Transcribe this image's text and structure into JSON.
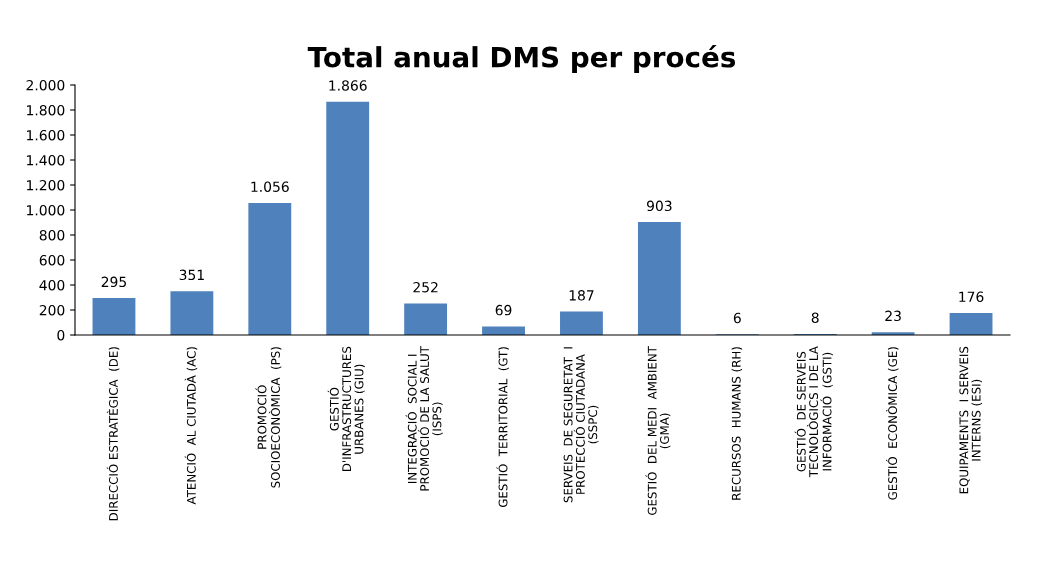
{
  "chart_data": {
    "type": "bar",
    "title": "Total anual DMS per procés",
    "categories": [
      "DIRECCIÓ ESTRATÈGICA  (DE)",
      "ATENCIÓ  AL CIUTADÀ (AC)",
      "PROMOCIÓ\nSOCIOECONÒMICA  (PS)",
      "GESTIÓ\nD'INFRASTRUCTURES\nURBANES (GIU)",
      "INTEGRACIÓ  SOCIAL I\nPROMOCIÓ DE LA SALUT\n(ISPS)",
      "GESTIÓ  TERRITORIAL  (GT)",
      "SERVEIS  DE SEGURETAT  I\nPROTECCIÓ CIUTADANA\n(SSPC)",
      "GESTIÓ  DEL MEDI  AMBIENT\n(GMA)",
      "RECURSOS  HUMANS (RH)",
      "GESTIÓ  DE SERVEIS\nTECNOLÒGICS I DE LA\nINFORMACIÓ  (GSTI)",
      "GESTIÓ  ECONÒMICA (GE)",
      "EQUIPAMENTS  I SERVEIS\nINTERNS (ESI)"
    ],
    "values": [
      295,
      351,
      1056,
      1866,
      252,
      69,
      187,
      903,
      6,
      8,
      23,
      176
    ],
    "value_labels": [
      "295",
      "351",
      "1.056",
      "1.866",
      "252",
      "69",
      "187",
      "903",
      "6",
      "8",
      "23",
      "176"
    ],
    "color": "#4f81bd",
    "ylim": [
      0,
      2000
    ],
    "yticks": [
      0,
      {
        "value": 200,
        "label": "200"
      },
      {
        "value": 400,
        "label": "400"
      },
      {
        "value": 600,
        "label": "600"
      },
      {
        "value": 800,
        "label": "800"
      },
      {
        "value": 1000,
        "label": "1.000"
      },
      {
        "value": 1200,
        "label": "1.200"
      },
      {
        "value": 1400,
        "label": "1.400"
      },
      {
        "value": 1600,
        "label": "1.600"
      },
      {
        "value": 1800,
        "label": "1.800"
      },
      {
        "value": 2000,
        "label": "2.000"
      }
    ],
    "grid": false,
    "legend": false
  }
}
